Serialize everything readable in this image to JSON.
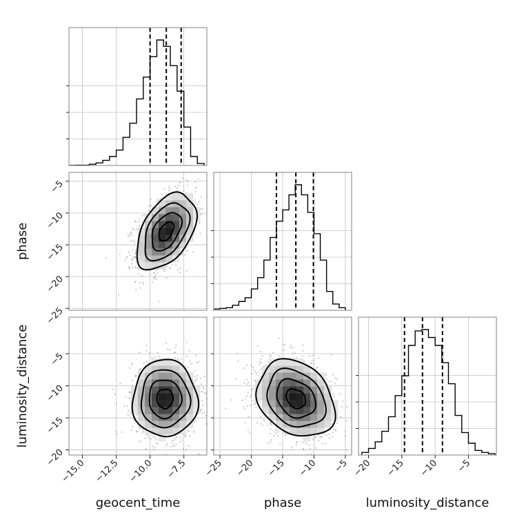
{
  "chart_data": {
    "type": "corner",
    "parameters": [
      {
        "name": "geocent_time",
        "xlabel": "geocent_time",
        "xlim": [
          -16,
          -5.8
        ],
        "xticks": [
          -15.0,
          -12.5,
          -10.0,
          -7.5
        ],
        "xtick_labels": [
          "−15.0",
          "−12.5",
          "−10.0",
          "−7.5"
        ],
        "hist": {
          "edges": [
            -16,
            -15.5,
            -15,
            -14.5,
            -14,
            -13.5,
            -13,
            -12.5,
            -12,
            -11.5,
            -11,
            -10.5,
            -10,
            -9.5,
            -9,
            -8.5,
            -8,
            -7.5,
            -7,
            -6.5,
            -6
          ],
          "counts": [
            0.001,
            0.002,
            0.002,
            0.01,
            0.02,
            0.04,
            0.07,
            0.12,
            0.22,
            0.33,
            0.52,
            0.69,
            0.85,
            0.98,
            0.93,
            0.78,
            0.58,
            0.3,
            0.07,
            0.015
          ]
        },
        "quantiles": [
          -10.0,
          -8.8,
          -7.7
        ]
      },
      {
        "name": "phase",
        "xlabel": "phase",
        "ylabel": "phase",
        "xlim": [
          -26,
          -4
        ],
        "ylim": [
          -25.3,
          -3.6
        ],
        "xticks": [
          -25,
          -20,
          -15,
          -10,
          -5
        ],
        "xtick_labels": [
          "−25",
          "−20",
          "−15",
          "−10",
          "−5"
        ],
        "yticks": [
          -25,
          -20,
          -15,
          -10,
          -5
        ],
        "ytick_labels": [
          "−25",
          "−20",
          "−15",
          "−10",
          "−5"
        ],
        "hist": {
          "edges": [
            -26,
            -25,
            -24,
            -23,
            -22,
            -21,
            -20,
            -19,
            -18,
            -17,
            -16,
            -15,
            -14,
            -13,
            -12,
            -11,
            -10,
            -9,
            -8,
            -7,
            -6,
            -5
          ],
          "counts": [
            0.01,
            0.015,
            0.02,
            0.04,
            0.07,
            0.1,
            0.17,
            0.26,
            0.4,
            0.58,
            0.71,
            0.8,
            0.92,
            1.0,
            0.92,
            0.78,
            0.61,
            0.4,
            0.15,
            0.05,
            0.02
          ]
        },
        "quantiles": [
          -16.0,
          -12.9,
          -10.1
        ]
      },
      {
        "name": "luminosity_distance",
        "xlabel": "luminosity_distance",
        "ylabel": "luminosity_distance",
        "xlim": [
          -21.5,
          -0.8
        ],
        "ylim": [
          -20.8,
          0.7
        ],
        "xticks": [
          -20,
          -15,
          -10,
          -5
        ],
        "xtick_labels": [
          "−20",
          "−15",
          "−10",
          "−5"
        ],
        "yticks": [
          -20,
          -15,
          -10,
          -5
        ],
        "ytick_labels": [
          "−20",
          "−15",
          "−10",
          "−5"
        ],
        "hist": {
          "edges": [
            -21,
            -20,
            -19,
            -18,
            -17,
            -16,
            -15,
            -14,
            -13,
            -12,
            -11,
            -10,
            -9,
            -8,
            -7,
            -6,
            -5,
            -4,
            -3,
            -2,
            -1
          ],
          "counts": [
            0.02,
            0.05,
            0.1,
            0.18,
            0.29,
            0.45,
            0.6,
            0.83,
            0.94,
            0.95,
            0.89,
            0.83,
            0.7,
            0.54,
            0.3,
            0.17,
            0.09,
            0.035,
            0.02,
            0.01
          ]
        },
        "quantiles": [
          -14.6,
          -11.9,
          -8.9
        ]
      }
    ],
    "pairs": [
      {
        "x": "geocent_time",
        "y": "phase",
        "mean": [
          -8.8,
          -12.9
        ],
        "sigma": [
          1.1,
          3.0
        ],
        "corr": 0.45,
        "contour_levels_sigma": [
          0.5,
          1.0,
          1.5,
          2.0
        ]
      },
      {
        "x": "geocent_time",
        "y": "luminosity_distance",
        "mean": [
          -8.9,
          -12.0
        ],
        "sigma": [
          1.2,
          3.0
        ],
        "corr": 0.0,
        "contour_levels_sigma": [
          0.5,
          1.0,
          1.5,
          2.0
        ]
      },
      {
        "x": "phase",
        "y": "luminosity_distance",
        "mean": [
          -12.9,
          -12.0
        ],
        "sigma": [
          3.1,
          3.0
        ],
        "corr": -0.25,
        "contour_levels_sigma": [
          0.5,
          1.0,
          1.5,
          2.0
        ]
      }
    ],
    "grid": true
  }
}
